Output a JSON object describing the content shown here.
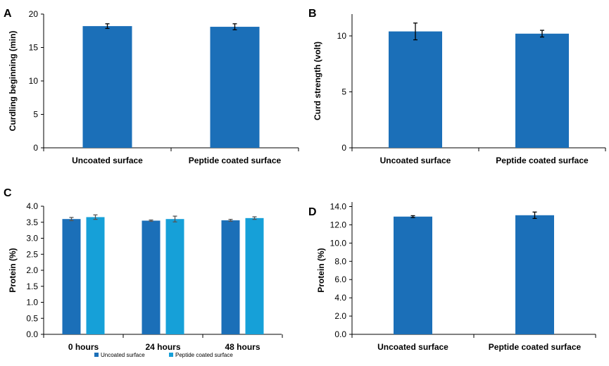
{
  "chart_data": [
    {
      "panel": "A",
      "type": "bar",
      "categories": [
        "Uncoated surface",
        "Peptide coated surface"
      ],
      "values": [
        18.2,
        18.1
      ],
      "errors": [
        0.35,
        0.45
      ],
      "ylabel": "Curdling beginning (min)",
      "ylim": [
        0,
        20
      ],
      "yticks": [
        "0",
        "5",
        "10",
        "15",
        "20"
      ],
      "color": "#1b6fb8"
    },
    {
      "panel": "B",
      "type": "bar",
      "categories": [
        "Uncoated surface",
        "Peptide coated surface"
      ],
      "values": [
        10.4,
        10.2
      ],
      "errors": [
        0.75,
        0.3
      ],
      "ylabel": "Curd strength (volt)",
      "ylim": [
        0,
        12
      ],
      "yticks": [
        "0",
        "5",
        "10"
      ],
      "color": "#1b6fb8"
    },
    {
      "panel": "C",
      "type": "bar",
      "categories": [
        "0 hours",
        "24 hours",
        "48 hours"
      ],
      "series": [
        {
          "name": "Uncoated surface",
          "values": [
            3.6,
            3.55,
            3.56
          ],
          "errors": [
            0.05,
            0.02,
            0.03
          ],
          "color": "#1b6fb8"
        },
        {
          "name": "Peptide coated surface",
          "values": [
            3.66,
            3.6,
            3.63
          ],
          "errors": [
            0.07,
            0.09,
            0.04
          ],
          "color": "#16a0d8"
        }
      ],
      "ylabel": "Protein (%)",
      "ylim": [
        0,
        4.0
      ],
      "yticks": [
        "0.0",
        "0.5",
        "1.0",
        "1.5",
        "2.0",
        "2.5",
        "3.0",
        "3.5",
        "4.0"
      ],
      "legend": "bottom"
    },
    {
      "panel": "D",
      "type": "bar",
      "categories": [
        "Uncoated surface",
        "Peptide coated surface"
      ],
      "values": [
        12.9,
        13.05
      ],
      "errors": [
        0.1,
        0.35
      ],
      "ylabel": "Protein (%)",
      "ylim": [
        0,
        15
      ],
      "yticks": [
        "0.0",
        "2.0",
        "4.0",
        "6.0",
        "8.0",
        "10.0",
        "12.0",
        "14.0"
      ],
      "color": "#1b6fb8"
    }
  ]
}
